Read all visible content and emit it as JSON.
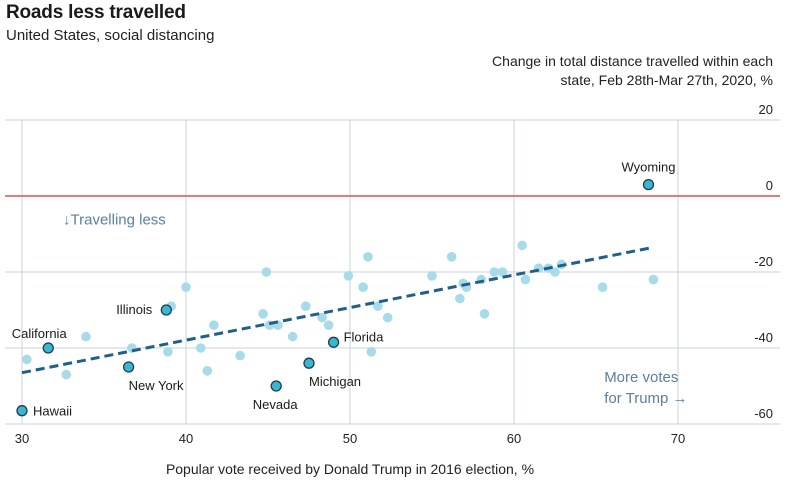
{
  "chart_data": {
    "type": "scatter",
    "title": "Roads less travelled",
    "subtitle": "United States, social distancing",
    "ylabel": "Change in total distance travelled within each state, Feb 28th-Mar 27th, 2020, %",
    "xlabel": "Popular vote received by Donald Trump in 2016 election, %",
    "xlim": [
      30,
      70
    ],
    "ylim": [
      -60,
      20
    ],
    "xticks": [
      30,
      40,
      50,
      60,
      70
    ],
    "yticks": [
      20,
      0,
      -20,
      -40,
      -60
    ],
    "reference_line": {
      "y": 0,
      "color": "#d9534f"
    },
    "trend_line": {
      "from": [
        30,
        -46.5
      ],
      "to": [
        68.5,
        -13.5
      ],
      "color": "#1f5f8b"
    },
    "annotations": [
      {
        "text": "↓Travelling less",
        "x": 32.5,
        "y": -7.5
      },
      {
        "text": "More votes",
        "x": 65.5,
        "y": -49
      },
      {
        "text": "for Trump →",
        "x": 65.5,
        "y": -54.5
      }
    ],
    "colors": {
      "point": "#a8dbe8",
      "highlight": "#3bb5d0",
      "highlight_stroke": "#1b3d4f",
      "grid": "#c9d4da"
    },
    "labeled_points": [
      {
        "name": "Wyoming",
        "x": 68.2,
        "y": 3
      },
      {
        "name": "California",
        "x": 31.6,
        "y": -40
      },
      {
        "name": "Illinois",
        "x": 38.8,
        "y": -30
      },
      {
        "name": "New York",
        "x": 36.5,
        "y": -45
      },
      {
        "name": "Florida",
        "x": 49.0,
        "y": -38.5
      },
      {
        "name": "Michigan",
        "x": 47.5,
        "y": -44
      },
      {
        "name": "Nevada",
        "x": 45.5,
        "y": -50
      },
      {
        "name": "Hawaii",
        "x": 30.0,
        "y": -56.5
      }
    ],
    "points": [
      {
        "x": 30.3,
        "y": -43
      },
      {
        "x": 32.7,
        "y": -47
      },
      {
        "x": 33.9,
        "y": -37
      },
      {
        "x": 36.7,
        "y": -40
      },
      {
        "x": 38.9,
        "y": -41
      },
      {
        "x": 39.1,
        "y": -29
      },
      {
        "x": 40.0,
        "y": -24
      },
      {
        "x": 40.9,
        "y": -40
      },
      {
        "x": 41.3,
        "y": -46
      },
      {
        "x": 41.7,
        "y": -34
      },
      {
        "x": 43.3,
        "y": -42
      },
      {
        "x": 44.7,
        "y": -31
      },
      {
        "x": 44.9,
        "y": -20
      },
      {
        "x": 45.1,
        "y": -34
      },
      {
        "x": 45.6,
        "y": -34
      },
      {
        "x": 46.5,
        "y": -37
      },
      {
        "x": 47.3,
        "y": -29
      },
      {
        "x": 48.3,
        "y": -32
      },
      {
        "x": 48.7,
        "y": -34
      },
      {
        "x": 49.9,
        "y": -21
      },
      {
        "x": 50.8,
        "y": -24
      },
      {
        "x": 51.1,
        "y": -16
      },
      {
        "x": 51.3,
        "y": -41
      },
      {
        "x": 51.7,
        "y": -29
      },
      {
        "x": 52.3,
        "y": -32
      },
      {
        "x": 55.0,
        "y": -21
      },
      {
        "x": 56.2,
        "y": -16
      },
      {
        "x": 56.7,
        "y": -27
      },
      {
        "x": 56.9,
        "y": -23
      },
      {
        "x": 57.1,
        "y": -24
      },
      {
        "x": 58.0,
        "y": -22
      },
      {
        "x": 58.2,
        "y": -31
      },
      {
        "x": 58.8,
        "y": -20
      },
      {
        "x": 59.3,
        "y": -20
      },
      {
        "x": 60.5,
        "y": -13
      },
      {
        "x": 60.7,
        "y": -22
      },
      {
        "x": 61.5,
        "y": -19
      },
      {
        "x": 62.1,
        "y": -19
      },
      {
        "x": 62.5,
        "y": -20
      },
      {
        "x": 62.9,
        "y": -18
      },
      {
        "x": 65.4,
        "y": -24
      },
      {
        "x": 68.5,
        "y": -22
      }
    ]
  }
}
